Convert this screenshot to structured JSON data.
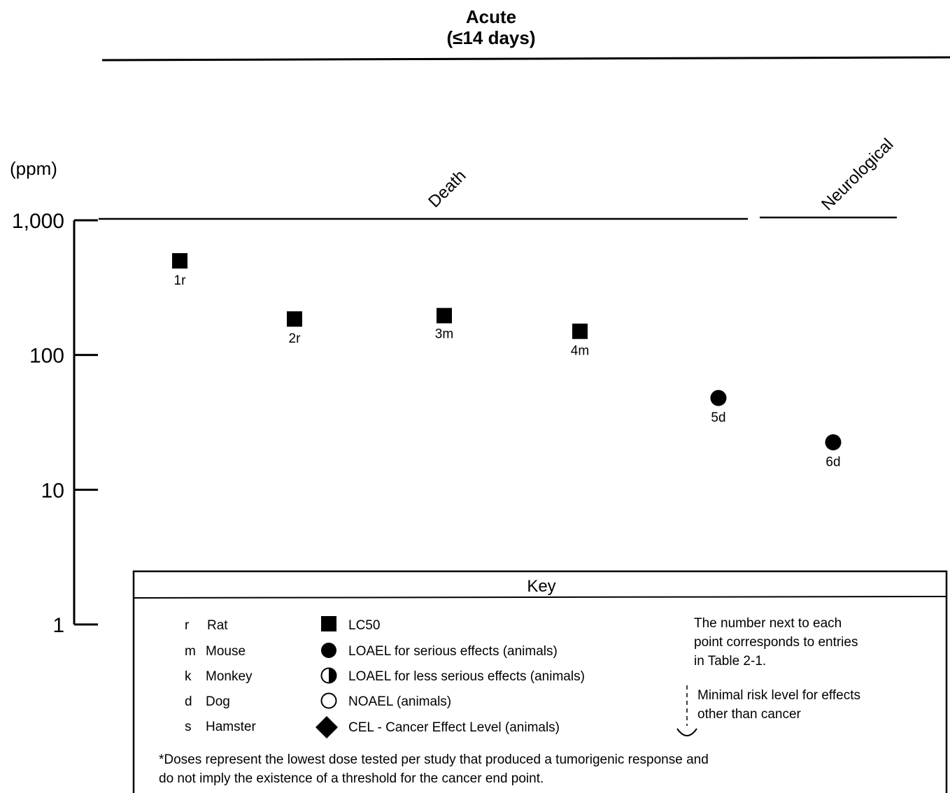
{
  "chart_data": {
    "type": "scatter",
    "title": "Acute",
    "subtitle": "(≤14 days)",
    "ylabel": "(ppm)",
    "yscale": "log",
    "ylim": [
      1,
      1000
    ],
    "yticks": [
      {
        "value": 1000,
        "label": "1,000"
      },
      {
        "value": 100,
        "label": "100"
      },
      {
        "value": 10,
        "label": "10"
      },
      {
        "value": 1,
        "label": "1"
      }
    ],
    "categories": [
      "Death",
      "Neurological"
    ],
    "points": [
      {
        "label": "1r",
        "category": "Death",
        "species": "Rat",
        "value": 500,
        "marker": "square"
      },
      {
        "label": "2r",
        "category": "Death",
        "species": "Rat",
        "value": 185,
        "marker": "square"
      },
      {
        "label": "3m",
        "category": "Death",
        "species": "Mouse",
        "value": 196,
        "marker": "square"
      },
      {
        "label": "4m",
        "category": "Death",
        "species": "Mouse",
        "value": 150,
        "marker": "square"
      },
      {
        "label": "5d",
        "category": "Neurological",
        "species": "Dog",
        "value": 48,
        "marker": "circle-filled"
      },
      {
        "label": "6d",
        "category": "Neurological",
        "species": "Dog",
        "value": 22.5,
        "marker": "circle-filled"
      }
    ]
  },
  "key": {
    "title": "Key",
    "species": [
      {
        "code": "r",
        "name": "Rat"
      },
      {
        "code": "m",
        "name": "Mouse"
      },
      {
        "code": "k",
        "name": "Monkey"
      },
      {
        "code": "d",
        "name": "Dog"
      },
      {
        "code": "s",
        "name": "Hamster"
      }
    ],
    "symbols": [
      {
        "shape": "square",
        "label": "LC50"
      },
      {
        "shape": "circle-filled",
        "label": "LOAEL for serious effects (animals)"
      },
      {
        "shape": "circle-half",
        "label": "LOAEL for  less serious effects (animals)"
      },
      {
        "shape": "circle-open",
        "label": "NOAEL (animals)"
      },
      {
        "shape": "diamond",
        "label": "CEL - Cancer Effect Level (animals)"
      }
    ],
    "note_lines": [
      "The number next to each",
      "point corresponds to entries",
      "in Table 2-1."
    ],
    "mrl_lines": [
      "Minimal risk level for effects",
      "other than cancer"
    ],
    "footnote_lines": [
      "*Doses represent the lowest dose tested per study that produced a tumorigenic response and",
      "do not imply the existence of a threshold for the cancer end point."
    ]
  }
}
